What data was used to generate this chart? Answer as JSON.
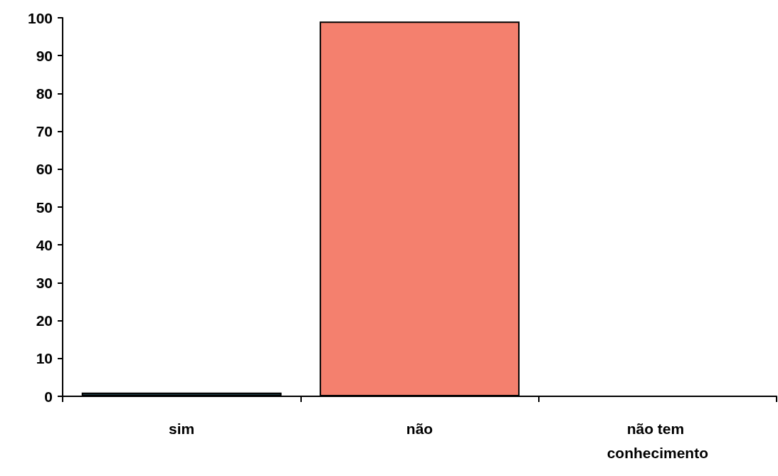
{
  "chart_data": {
    "type": "bar",
    "categories": [
      "sim",
      "não",
      "não tem conhecimento"
    ],
    "values": [
      1,
      99,
      0
    ],
    "colors": [
      "#1c3b42",
      "#f4806e",
      "#000000"
    ],
    "ylim": [
      0,
      100
    ],
    "yticks": [
      0,
      10,
      20,
      30,
      40,
      50,
      60,
      70,
      80,
      90,
      100
    ],
    "grid": false
  }
}
